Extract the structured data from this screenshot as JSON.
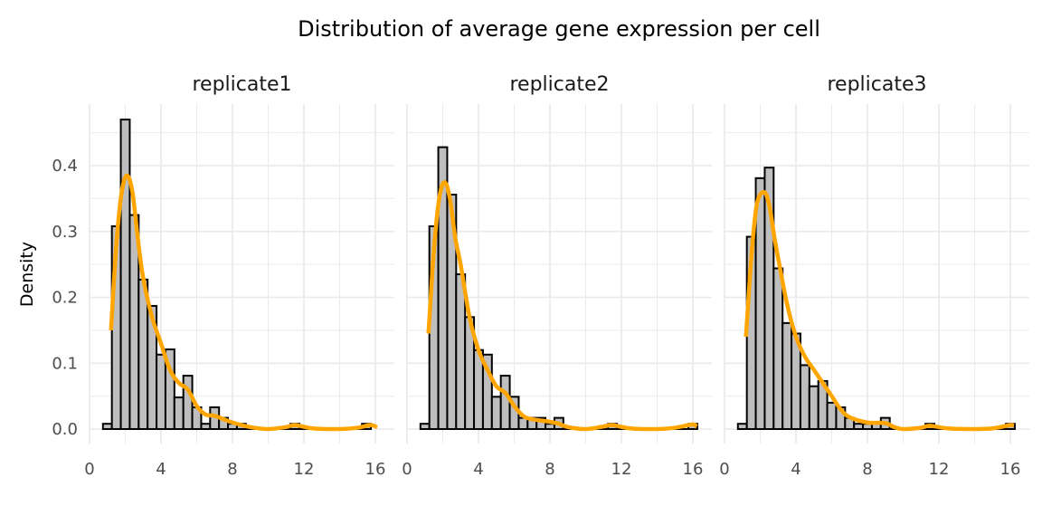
{
  "chart_data": {
    "type": "bar",
    "title": "Distribution of average gene expression per cell",
    "xlabel": "",
    "ylabel": "Density",
    "xlim": [
      0,
      17
    ],
    "ylim": [
      0,
      0.48
    ],
    "x_ticks": [
      0,
      4,
      8,
      12,
      16
    ],
    "y_ticks": [
      0.0,
      0.1,
      0.2,
      0.3,
      0.4
    ],
    "y_tick_labels": [
      "0.0",
      "0.1",
      "0.2",
      "0.3",
      "0.4"
    ],
    "x_tick_labels": [
      "0",
      "4",
      "8",
      "12",
      "16"
    ],
    "bin_width": 0.5,
    "grid": true,
    "colors": {
      "bar_fill": "#bebebe",
      "bar_stroke": "#000000",
      "density": "#FFA500",
      "grid": "#ebebeb"
    },
    "panels": [
      {
        "name": "replicate1",
        "bin_centers": [
          1.0,
          1.5,
          2.0,
          2.5,
          3.0,
          3.5,
          4.0,
          4.5,
          5.0,
          5.5,
          6.0,
          6.5,
          7.0,
          7.5,
          8.0,
          8.5,
          11.5,
          15.5
        ],
        "density": [
          0.008,
          0.308,
          0.47,
          0.325,
          0.227,
          0.187,
          0.113,
          0.121,
          0.048,
          0.081,
          0.033,
          0.008,
          0.033,
          0.017,
          0.008,
          0.008,
          0.008,
          0.008
        ],
        "curve": [
          [
            1.2,
            0.15
          ],
          [
            1.5,
            0.28
          ],
          [
            1.8,
            0.36
          ],
          [
            2.1,
            0.385
          ],
          [
            2.4,
            0.36
          ],
          [
            2.7,
            0.29
          ],
          [
            3.0,
            0.23
          ],
          [
            3.5,
            0.17
          ],
          [
            4.0,
            0.13
          ],
          [
            4.5,
            0.09
          ],
          [
            5.0,
            0.07
          ],
          [
            5.5,
            0.06
          ],
          [
            6.0,
            0.035
          ],
          [
            6.5,
            0.022
          ],
          [
            7.0,
            0.02
          ],
          [
            8.0,
            0.01
          ],
          [
            9.0,
            0.003
          ],
          [
            10.0,
            0.0
          ],
          [
            11.0,
            0.003
          ],
          [
            11.5,
            0.006
          ],
          [
            12.5,
            0.001
          ],
          [
            14.0,
            0.0
          ],
          [
            15.0,
            0.002
          ],
          [
            15.7,
            0.006
          ],
          [
            16.1,
            0.003
          ]
        ]
      },
      {
        "name": "replicate2",
        "bin_centers": [
          1.0,
          1.5,
          2.0,
          2.5,
          3.0,
          3.5,
          4.0,
          4.5,
          5.0,
          5.5,
          6.0,
          6.5,
          7.0,
          7.5,
          8.0,
          8.5,
          11.5,
          16.0
        ],
        "density": [
          0.008,
          0.308,
          0.428,
          0.356,
          0.235,
          0.17,
          0.12,
          0.113,
          0.049,
          0.081,
          0.049,
          0.017,
          0.017,
          0.017,
          0.008,
          0.017,
          0.008,
          0.008
        ],
        "curve": [
          [
            1.2,
            0.145
          ],
          [
            1.5,
            0.27
          ],
          [
            1.8,
            0.35
          ],
          [
            2.1,
            0.375
          ],
          [
            2.4,
            0.35
          ],
          [
            2.7,
            0.29
          ],
          [
            3.0,
            0.25
          ],
          [
            3.5,
            0.17
          ],
          [
            4.0,
            0.12
          ],
          [
            4.5,
            0.09
          ],
          [
            5.0,
            0.065
          ],
          [
            5.5,
            0.055
          ],
          [
            6.0,
            0.035
          ],
          [
            6.5,
            0.02
          ],
          [
            7.0,
            0.015
          ],
          [
            8.0,
            0.011
          ],
          [
            8.5,
            0.008
          ],
          [
            9.0,
            0.003
          ],
          [
            10.0,
            0.0
          ],
          [
            11.0,
            0.004
          ],
          [
            11.5,
            0.006
          ],
          [
            12.5,
            0.001
          ],
          [
            14.0,
            0.0
          ],
          [
            15.0,
            0.002
          ],
          [
            16.0,
            0.007
          ],
          [
            16.2,
            0.003
          ]
        ]
      },
      {
        "name": "replicate3",
        "bin_centers": [
          1.0,
          1.5,
          2.0,
          2.5,
          3.0,
          3.5,
          4.0,
          4.5,
          5.0,
          5.5,
          6.0,
          6.5,
          7.0,
          7.5,
          8.0,
          8.5,
          9.0,
          11.5,
          16.0
        ],
        "density": [
          0.008,
          0.292,
          0.381,
          0.397,
          0.244,
          0.161,
          0.145,
          0.097,
          0.065,
          0.073,
          0.04,
          0.033,
          0.017,
          0.008,
          0.008,
          0.008,
          0.017,
          0.008,
          0.008
        ],
        "curve": [
          [
            1.2,
            0.14
          ],
          [
            1.5,
            0.26
          ],
          [
            1.8,
            0.34
          ],
          [
            2.2,
            0.36
          ],
          [
            2.5,
            0.34
          ],
          [
            2.8,
            0.29
          ],
          [
            3.0,
            0.26
          ],
          [
            3.5,
            0.19
          ],
          [
            4.0,
            0.14
          ],
          [
            4.5,
            0.11
          ],
          [
            5.0,
            0.09
          ],
          [
            5.5,
            0.07
          ],
          [
            6.0,
            0.05
          ],
          [
            6.5,
            0.03
          ],
          [
            7.0,
            0.018
          ],
          [
            8.0,
            0.01
          ],
          [
            9.0,
            0.009
          ],
          [
            9.5,
            0.003
          ],
          [
            10.0,
            0.0
          ],
          [
            11.0,
            0.002
          ],
          [
            11.5,
            0.005
          ],
          [
            12.5,
            0.001
          ],
          [
            14.0,
            0.0
          ],
          [
            15.0,
            0.001
          ],
          [
            16.0,
            0.006
          ],
          [
            16.2,
            0.005
          ]
        ]
      }
    ]
  }
}
